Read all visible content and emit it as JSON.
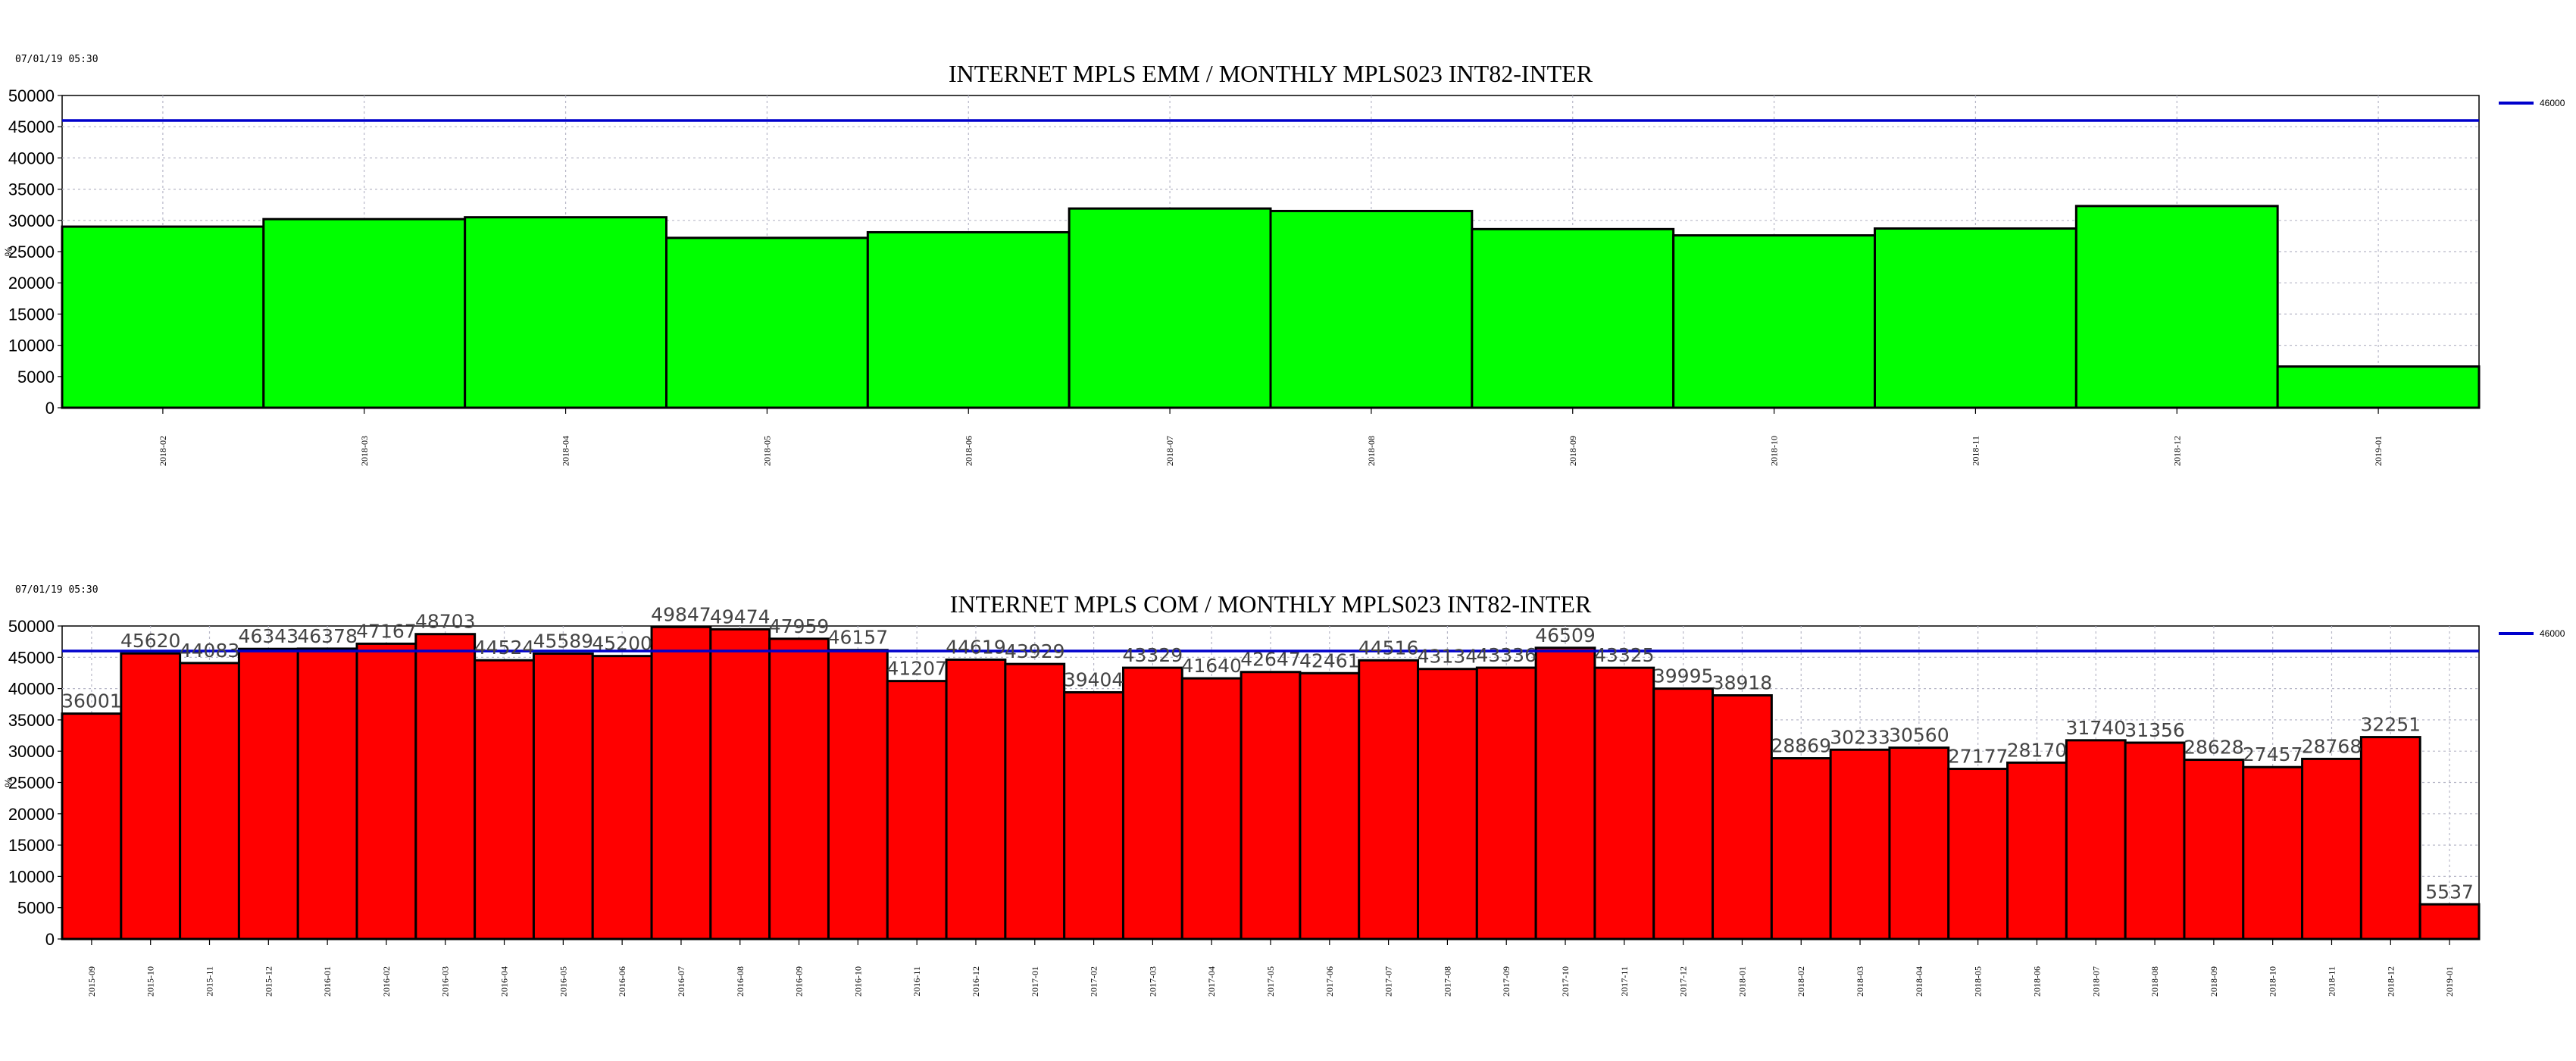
{
  "chart_data": [
    {
      "type": "bar",
      "title": "INTERNET MPLS EMM / MONTHLY MPLS023 INT82-INTER",
      "timestamp": "07/01/19 05:30",
      "ylabel": "%",
      "ylim": [
        0,
        50000
      ],
      "yticks": [
        0,
        5000,
        10000,
        15000,
        20000,
        25000,
        30000,
        35000,
        40000,
        45000,
        50000
      ],
      "grid": true,
      "bar_color": "#00ff00",
      "threshold": {
        "value": 46000,
        "label": "46000",
        "color": "#0000cc"
      },
      "show_data_labels": false,
      "categories": [
        "2018-02",
        "2018-03",
        "2018-04",
        "2018-05",
        "2018-06",
        "2018-07",
        "2018-08",
        "2018-09",
        "2018-10",
        "2018-11",
        "2018-12",
        "2019-01"
      ],
      "values": [
        29000,
        30200,
        30500,
        27200,
        28100,
        31900,
        31500,
        28600,
        27600,
        28700,
        32300,
        6600
      ]
    },
    {
      "type": "bar",
      "title": "INTERNET MPLS COM / MONTHLY MPLS023 INT82-INTER",
      "timestamp": "07/01/19 05:30",
      "ylabel": "%",
      "ylim": [
        0,
        50000
      ],
      "yticks": [
        0,
        5000,
        10000,
        15000,
        20000,
        25000,
        30000,
        35000,
        40000,
        45000,
        50000
      ],
      "grid": true,
      "bar_color": "#ff0000",
      "threshold": {
        "value": 46000,
        "label": "46000",
        "color": "#0000cc"
      },
      "show_data_labels": true,
      "categories": [
        "2015-09",
        "2015-10",
        "2015-11",
        "2015-12",
        "2016-01",
        "2016-02",
        "2016-03",
        "2016-04",
        "2016-05",
        "2016-06",
        "2016-07",
        "2016-08",
        "2016-09",
        "2016-10",
        "2016-11",
        "2016-12",
        "2017-01",
        "2017-02",
        "2017-03",
        "2017-04",
        "2017-05",
        "2017-06",
        "2017-07",
        "2017-08",
        "2017-09",
        "2017-10",
        "2017-11",
        "2017-12",
        "2018-01",
        "2018-02",
        "2018-03",
        "2018-04",
        "2018-05",
        "2018-06",
        "2018-07",
        "2018-08",
        "2018-09",
        "2018-10",
        "2018-11",
        "2018-12",
        "2019-01"
      ],
      "values": [
        36001,
        45620,
        44083,
        46343,
        46378,
        47167,
        48703,
        44524,
        45589,
        45200,
        49847,
        49474,
        47959,
        46157,
        41207,
        44619,
        43929,
        39404,
        43329,
        41640,
        42647,
        42461,
        44516,
        43134,
        43336,
        46509,
        43325,
        39995,
        38918,
        28869,
        30233,
        30560,
        27177,
        28170,
        31740,
        31356,
        28628,
        27457,
        28768,
        32251,
        5537
      ]
    }
  ]
}
